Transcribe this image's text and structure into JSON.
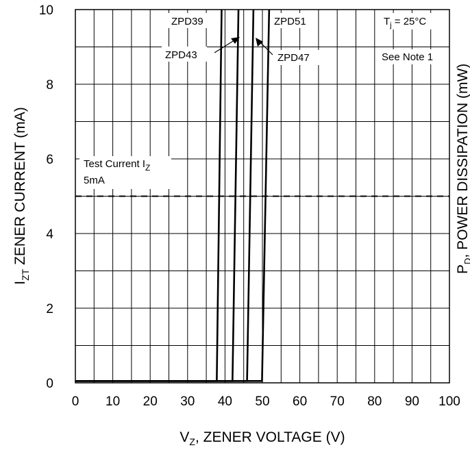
{
  "chart_data": {
    "type": "line",
    "xlabel": {
      "main": "V",
      "sub": "Z",
      "rest": ", ZENER VOLTAGE (V)"
    },
    "ylabel": {
      "main": "I",
      "sub": "ZT",
      "rest": " ZENER CURRENT (mA)"
    },
    "right_axis_label": {
      "main": "P",
      "sub": "D",
      "rest": ", POWER DISSIPATION (mW)"
    },
    "xlim": [
      0,
      100
    ],
    "ylim": [
      0,
      10
    ],
    "x_ticks": [
      0,
      10,
      20,
      30,
      40,
      50,
      60,
      70,
      80,
      90,
      100
    ],
    "y_ticks": [
      0,
      2,
      4,
      6,
      8,
      10
    ],
    "x_tick_labels": [
      "0",
      "10",
      "20",
      "30",
      "40",
      "50",
      "60",
      "70",
      "80",
      "90",
      "100"
    ],
    "y_tick_labels": [
      "0",
      "2",
      "4",
      "6",
      "8",
      "10"
    ],
    "x_gridlines": [
      0,
      5,
      10,
      15,
      20,
      25,
      30,
      35,
      40,
      45,
      50,
      55,
      60,
      65,
      70,
      75,
      80,
      85,
      90,
      95,
      100
    ],
    "y_gridlines": [
      0,
      1,
      2,
      3,
      4,
      5,
      6,
      7,
      8,
      9,
      10
    ],
    "grid": true,
    "series": [
      {
        "name": "ZPD39",
        "x": [
          0,
          37.8,
          39.1
        ],
        "y": [
          0.05,
          0.05,
          10
        ]
      },
      {
        "name": "ZPD43",
        "x": [
          0,
          42.0,
          43.6
        ],
        "y": [
          0.05,
          0.05,
          10
        ]
      },
      {
        "name": "ZPD47",
        "x": [
          0,
          45.9,
          47.6
        ],
        "y": [
          0.05,
          0.05,
          10
        ]
      },
      {
        "name": "ZPD51",
        "x": [
          0,
          49.9,
          51.8
        ],
        "y": [
          0.05,
          0.05,
          10
        ]
      }
    ],
    "test_current_line": {
      "y": 5,
      "style": "dashed"
    },
    "annotations": {
      "zpd39": "ZPD39",
      "zpd51": "ZPD51",
      "zpd43": "ZPD43",
      "zpd47": "ZPD47",
      "tj": {
        "main": "T",
        "sub": "j",
        "rest": " = 25°C"
      },
      "note": "See Note 1",
      "test_current": {
        "main": "Test Current I",
        "sub": "Z"
      },
      "test_current_value": "5mA"
    },
    "colors": {
      "lines": "#000000",
      "grid": "#000000",
      "background": "#ffffff"
    }
  }
}
